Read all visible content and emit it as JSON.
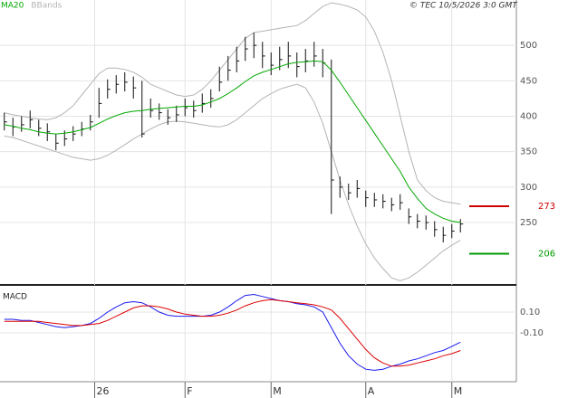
{
  "chart_data": [
    {
      "type": "ohlc",
      "annotation": "© TEC 10/5/2026 3:0 GMT",
      "x": [
        1,
        3,
        5,
        7,
        9,
        11,
        13,
        15,
        17,
        19,
        21,
        23,
        25,
        27,
        29,
        31,
        33,
        35,
        37,
        39,
        41,
        43,
        45,
        47,
        49,
        51,
        53,
        55,
        57,
        59,
        61,
        63,
        65,
        67,
        69,
        71,
        73,
        75,
        77,
        79,
        81,
        83,
        85,
        87,
        89,
        91,
        93,
        95,
        97,
        99,
        101,
        103,
        105,
        107
      ],
      "high": [
        405,
        398,
        400,
        408,
        395,
        390,
        375,
        380,
        386,
        392,
        402,
        440,
        452,
        458,
        462,
        456,
        450,
        425,
        418,
        410,
        415,
        425,
        422,
        432,
        438,
        470,
        485,
        498,
        512,
        518,
        505,
        490,
        498,
        505,
        490,
        495,
        505,
        495,
        480,
        315,
        305,
        310,
        295,
        292,
        290,
        285,
        290,
        270,
        262,
        260,
        252,
        244,
        248,
        255
      ],
      "low": [
        380,
        372,
        378,
        383,
        372,
        365,
        352,
        358,
        365,
        372,
        380,
        398,
        425,
        432,
        435,
        425,
        370,
        398,
        395,
        388,
        392,
        400,
        398,
        405,
        412,
        435,
        450,
        462,
        478,
        482,
        468,
        458,
        465,
        468,
        455,
        462,
        470,
        455,
        262,
        285,
        282,
        285,
        272,
        272,
        270,
        266,
        268,
        248,
        242,
        240,
        230,
        222,
        228,
        236
      ],
      "close": [
        392,
        385,
        388,
        395,
        383,
        378,
        362,
        368,
        375,
        382,
        392,
        418,
        438,
        445,
        448,
        440,
        375,
        408,
        405,
        398,
        402,
        412,
        408,
        418,
        425,
        448,
        465,
        478,
        495,
        500,
        485,
        472,
        480,
        485,
        470,
        478,
        485,
        475,
        310,
        300,
        292,
        298,
        285,
        282,
        280,
        275,
        278,
        258,
        252,
        250,
        240,
        232,
        238,
        248
      ],
      "bar_color": "#111111",
      "series": [
        {
          "name": "MA20",
          "color": "#00a800",
          "values": [
            388,
            386,
            383,
            381,
            378,
            376,
            375,
            376,
            378,
            381,
            384,
            390,
            396,
            401,
            405,
            407,
            408,
            410,
            411,
            412,
            413,
            414,
            414,
            416,
            420,
            425,
            432,
            440,
            449,
            457,
            462,
            466,
            470,
            474,
            476,
            477,
            478,
            477,
            465,
            448,
            430,
            412,
            394,
            376,
            358,
            340,
            322,
            300,
            284,
            270,
            262,
            256,
            252,
            250
          ]
        },
        {
          "name": "BBands",
          "color": "#b4b4b4",
          "upper": [
            405,
            402,
            400,
            398,
            396,
            395,
            398,
            405,
            415,
            430,
            445,
            460,
            468,
            468,
            466,
            462,
            455,
            445,
            440,
            435,
            430,
            428,
            430,
            438,
            450,
            465,
            480,
            495,
            510,
            518,
            520,
            522,
            524,
            526,
            528,
            535,
            545,
            555,
            560,
            558,
            555,
            550,
            540,
            520,
            490,
            450,
            400,
            350,
            310,
            295,
            285,
            280,
            278,
            276
          ],
          "lower": [
            372,
            370,
            366,
            362,
            358,
            354,
            350,
            346,
            342,
            340,
            338,
            340,
            345,
            352,
            360,
            368,
            375,
            382,
            388,
            392,
            393,
            392,
            390,
            388,
            386,
            385,
            388,
            395,
            405,
            415,
            425,
            432,
            438,
            442,
            445,
            440,
            420,
            390,
            350,
            310,
            275,
            245,
            220,
            200,
            185,
            172,
            168,
            172,
            180,
            190,
            200,
            210,
            218,
            225
          ]
        }
      ],
      "levels": [
        {
          "value": 273,
          "color": "#cc0000"
        },
        {
          "value": 206,
          "color": "#009900"
        }
      ],
      "xlim": [
        0,
        120
      ],
      "xticks": [
        22,
        43,
        63,
        85,
        105
      ],
      "ylim": [
        162,
        564
      ],
      "yticks": [
        250,
        300,
        350,
        400,
        450,
        500
      ],
      "grid": true
    },
    {
      "type": "line",
      "title": "MACD",
      "x": [
        1,
        3,
        5,
        7,
        9,
        11,
        13,
        15,
        17,
        19,
        21,
        23,
        25,
        27,
        29,
        31,
        33,
        35,
        37,
        39,
        41,
        43,
        45,
        47,
        49,
        51,
        53,
        55,
        57,
        59,
        61,
        63,
        65,
        67,
        69,
        71,
        73,
        75,
        77,
        79,
        81,
        83,
        85,
        87,
        89,
        91,
        93,
        95,
        97,
        99,
        101,
        103,
        105,
        107
      ],
      "series": [
        {
          "color": "#1a1aee",
          "values": [
            0.03,
            0.03,
            0.02,
            0.02,
            0.0,
            -0.02,
            -0.04,
            -0.05,
            -0.04,
            -0.03,
            -0.01,
            0.04,
            0.1,
            0.15,
            0.19,
            0.2,
            0.19,
            0.15,
            0.1,
            0.07,
            0.06,
            0.06,
            0.06,
            0.06,
            0.07,
            0.1,
            0.15,
            0.21,
            0.26,
            0.27,
            0.25,
            0.23,
            0.21,
            0.2,
            0.18,
            0.17,
            0.15,
            0.1,
            -0.05,
            -0.2,
            -0.32,
            -0.4,
            -0.45,
            -0.46,
            -0.45,
            -0.42,
            -0.4,
            -0.37,
            -0.35,
            -0.32,
            -0.29,
            -0.27,
            -0.23,
            -0.19
          ]
        },
        {
          "color": "#dd0000",
          "values": [
            0.01,
            0.01,
            0.01,
            0.01,
            0.01,
            0.0,
            -0.01,
            -0.02,
            -0.03,
            -0.03,
            -0.02,
            -0.01,
            0.02,
            0.06,
            0.1,
            0.14,
            0.16,
            0.16,
            0.15,
            0.13,
            0.1,
            0.08,
            0.07,
            0.06,
            0.06,
            0.07,
            0.09,
            0.12,
            0.16,
            0.19,
            0.21,
            0.22,
            0.21,
            0.2,
            0.19,
            0.18,
            0.17,
            0.15,
            0.12,
            0.04,
            -0.06,
            -0.16,
            -0.26,
            -0.34,
            -0.39,
            -0.42,
            -0.42,
            -0.41,
            -0.39,
            -0.37,
            -0.35,
            -0.32,
            -0.3,
            -0.27
          ]
        }
      ],
      "xlim": [
        0,
        120
      ],
      "xticks": [
        {
          "value": 22,
          "label": "26"
        },
        {
          "value": 43,
          "label": "F"
        },
        {
          "value": 63,
          "label": "M"
        },
        {
          "value": 85,
          "label": "A"
        },
        {
          "value": 105,
          "label": "M"
        }
      ],
      "ylim": [
        -0.57,
        0.335
      ],
      "yticks": [
        {
          "value": 0.1,
          "label": "0.10"
        },
        {
          "value": -0.1,
          "label": "-0.10"
        }
      ],
      "grid": true
    }
  ]
}
